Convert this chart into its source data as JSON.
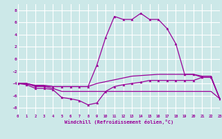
{
  "bg_color": "#cce8e8",
  "grid_color": "#ffffff",
  "line_color": "#990099",
  "xlabel": "Windchill (Refroidissement éolien,°C)",
  "xlim": [
    0,
    23
  ],
  "ylim": [
    -9,
    9
  ],
  "yticks": [
    -8,
    -6,
    -4,
    -2,
    0,
    2,
    4,
    6,
    8
  ],
  "xticks": [
    0,
    1,
    2,
    3,
    4,
    5,
    6,
    7,
    8,
    9,
    10,
    11,
    12,
    13,
    14,
    15,
    16,
    17,
    18,
    19,
    20,
    21,
    22,
    23
  ],
  "series": [
    {
      "x": [
        0,
        1,
        2,
        3,
        4,
        5,
        6,
        7,
        8,
        9,
        10,
        11,
        12,
        13,
        14,
        15,
        16,
        17,
        18,
        19,
        20,
        21,
        22,
        23
      ],
      "y": [
        -4.0,
        -4.0,
        -4.5,
        -4.5,
        -4.8,
        -5.3,
        -5.3,
        -5.3,
        -5.3,
        -5.3,
        -5.3,
        -5.3,
        -5.3,
        -5.3,
        -5.3,
        -5.3,
        -5.3,
        -5.3,
        -5.3,
        -5.3,
        -5.3,
        -5.3,
        -5.3,
        -6.5
      ],
      "marker": false
    },
    {
      "x": [
        0,
        1,
        2,
        3,
        4,
        5,
        6,
        7,
        8,
        9,
        10,
        11,
        12,
        13,
        14,
        15,
        16,
        17,
        18,
        19,
        20,
        21,
        22,
        23
      ],
      "y": [
        -4.0,
        -4.0,
        -4.3,
        -4.3,
        -4.5,
        -4.5,
        -4.5,
        -4.5,
        -4.5,
        -4.0,
        -3.7,
        -3.4,
        -3.1,
        -2.8,
        -2.7,
        -2.6,
        -2.5,
        -2.5,
        -2.5,
        -2.5,
        -2.5,
        -3.0,
        -3.0,
        -6.5
      ],
      "marker": false
    },
    {
      "x": [
        0,
        1,
        2,
        3,
        4,
        5,
        6,
        7,
        8,
        9,
        10,
        11,
        12,
        13,
        14,
        15,
        16,
        17,
        18,
        19,
        20,
        21,
        22,
        23
      ],
      "y": [
        -4.0,
        -4.2,
        -4.8,
        -4.8,
        -5.0,
        -6.3,
        -6.5,
        -6.8,
        -7.5,
        -7.2,
        -5.3,
        -4.5,
        -4.2,
        -4.0,
        -3.8,
        -3.5,
        -3.5,
        -3.5,
        -3.5,
        -3.5,
        -3.5,
        -3.0,
        -3.0,
        -6.5
      ],
      "marker": true
    },
    {
      "x": [
        0,
        1,
        2,
        3,
        4,
        5,
        6,
        7,
        8,
        9,
        10,
        11,
        12,
        13,
        14,
        15,
        16,
        17,
        18,
        19,
        20,
        21,
        22,
        23
      ],
      "y": [
        -4.0,
        -4.0,
        -4.4,
        -4.4,
        -4.5,
        -4.5,
        -4.5,
        -4.5,
        -4.5,
        -1.0,
        3.5,
        7.0,
        6.5,
        6.5,
        7.5,
        6.5,
        6.5,
        5.0,
        2.5,
        -2.5,
        -2.5,
        -2.8,
        -2.8,
        -6.5
      ],
      "marker": true
    }
  ]
}
